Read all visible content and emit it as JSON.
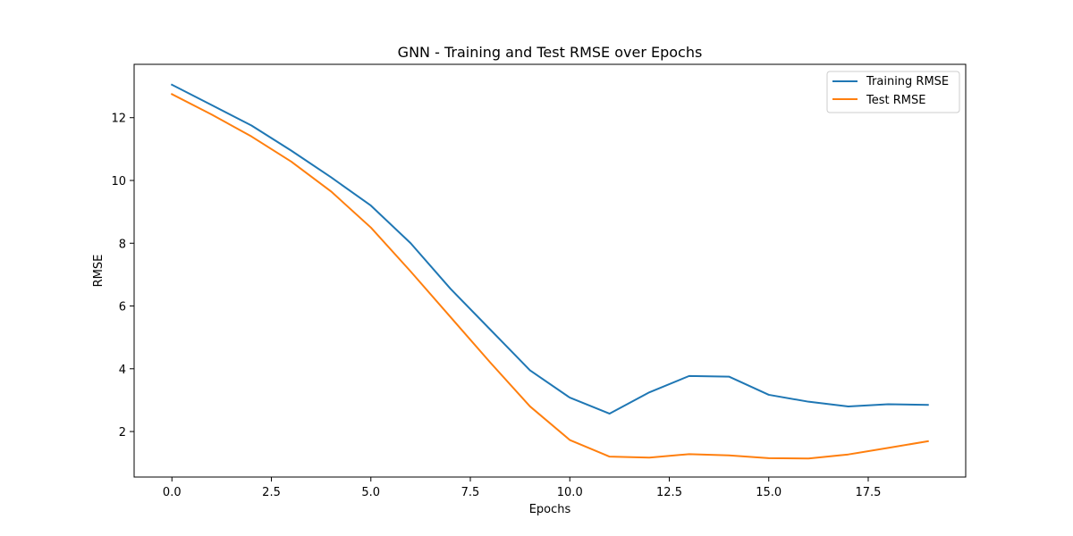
{
  "chart_data": {
    "type": "line",
    "title": "GNN - Training and Test RMSE over Epochs",
    "xlabel": "Epochs",
    "ylabel": "RMSE",
    "xlim": [
      -0.95,
      19.95
    ],
    "ylim": [
      0.55,
      13.7
    ],
    "x_ticks": [
      0.0,
      2.5,
      5.0,
      7.5,
      10.0,
      12.5,
      15.0,
      17.5
    ],
    "x_tick_labels": [
      "0.0",
      "2.5",
      "5.0",
      "7.5",
      "10.0",
      "12.5",
      "15.0",
      "17.5"
    ],
    "y_ticks": [
      2,
      4,
      6,
      8,
      10,
      12
    ],
    "y_tick_labels": [
      "2",
      "4",
      "6",
      "8",
      "10",
      "12"
    ],
    "grid": false,
    "legend_position": "top-right",
    "x": [
      0,
      1,
      2,
      3,
      4,
      5,
      6,
      7,
      8,
      9,
      10,
      11,
      12,
      13,
      14,
      15,
      16,
      17,
      18,
      19
    ],
    "series": [
      {
        "name": "Training RMSE",
        "color": "#1f77b4",
        "values": [
          13.05,
          12.4,
          11.75,
          10.95,
          10.1,
          9.2,
          8.0,
          6.55,
          5.25,
          3.95,
          3.08,
          2.57,
          3.25,
          3.77,
          3.75,
          3.17,
          2.95,
          2.8,
          2.87,
          2.85
        ]
      },
      {
        "name": "Test RMSE",
        "color": "#ff7f0e",
        "values": [
          12.75,
          12.1,
          11.4,
          10.6,
          9.65,
          8.5,
          7.1,
          5.65,
          4.2,
          2.8,
          1.73,
          1.2,
          1.17,
          1.28,
          1.24,
          1.15,
          1.14,
          1.27,
          1.48,
          1.69
        ]
      }
    ]
  }
}
